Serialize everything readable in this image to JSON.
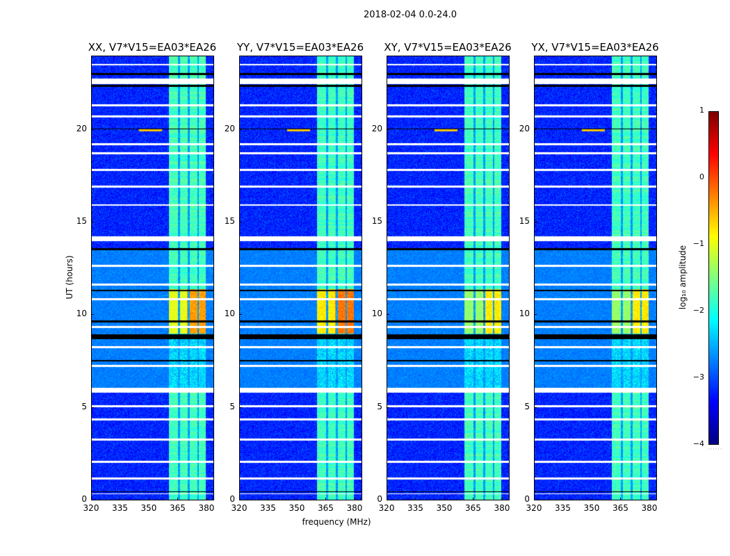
{
  "chart_data": {
    "type": "heatmap",
    "suptitle": "2018-02-04 0.0-24.0",
    "xlabel": "frequency (MHz)",
    "ylabel": "UT (hours)",
    "xlim": [
      320,
      384
    ],
    "ylim": [
      0,
      24
    ],
    "xticks": [
      "320",
      "335",
      "350",
      "365",
      "380"
    ],
    "xtick_values": [
      320,
      335,
      350,
      365,
      380
    ],
    "yticks": [
      "0",
      "5",
      "10",
      "15",
      "20"
    ],
    "ytick_values": [
      0,
      5,
      10,
      15,
      20
    ],
    "panels": [
      {
        "title": "XX, V7*V15=EA03*EA26",
        "band_peak": -0.5
      },
      {
        "title": "YY, V7*V15=EA03*EA26",
        "band_peak": -0.3
      },
      {
        "title": "XY, V7*V15=EA03*EA26",
        "band_peak": -0.9
      },
      {
        "title": "YX, V7*V15=EA03*EA26",
        "band_peak": -0.9
      }
    ],
    "band_MHz": [
      360.5,
      380
    ],
    "band_gaps_MHz": [
      [
        365.5,
        366.5
      ],
      [
        370.5,
        371.5
      ],
      [
        375.5,
        376.5
      ]
    ],
    "background_level": -3.2,
    "flagged_white_hours": [
      [
        23.5,
        23.6
      ],
      [
        22.5,
        22.8
      ],
      [
        21.3,
        21.4
      ],
      [
        20.7,
        20.8
      ],
      [
        19.2,
        19.3
      ],
      [
        18.7,
        18.8
      ],
      [
        17.8,
        17.9
      ],
      [
        16.9,
        17.0
      ],
      [
        15.9,
        16.0
      ],
      [
        14.0,
        14.25
      ],
      [
        12.6,
        12.7
      ],
      [
        11.6,
        11.7
      ],
      [
        10.8,
        10.9
      ],
      [
        9.3,
        9.4
      ],
      [
        8.2,
        8.3
      ],
      [
        7.2,
        7.3
      ],
      [
        5.8,
        6.05
      ],
      [
        5.0,
        5.1
      ],
      [
        4.3,
        4.4
      ],
      [
        3.2,
        3.3
      ],
      [
        2.0,
        2.1
      ],
      [
        1.1,
        1.2
      ],
      [
        0.3,
        0.35
      ]
    ],
    "flagged_black_hours": [
      [
        23.0,
        23.1
      ],
      [
        22.35,
        22.45
      ],
      [
        20.05,
        20.1
      ],
      [
        13.5,
        13.6
      ],
      [
        11.3,
        11.35
      ],
      [
        9.6,
        9.7
      ],
      [
        8.7,
        8.95
      ],
      [
        7.5,
        7.55
      ],
      [
        0.4,
        0.45
      ]
    ],
    "colorbar": {
      "label": "log₁₀ amplitude",
      "range": [
        -4,
        1
      ],
      "ticks": [
        "1",
        "0",
        "−1",
        "−2",
        "−3",
        "−4"
      ],
      "tick_values": [
        1,
        0,
        -1,
        -2,
        -3,
        -4
      ],
      "colormap": "jet"
    }
  }
}
